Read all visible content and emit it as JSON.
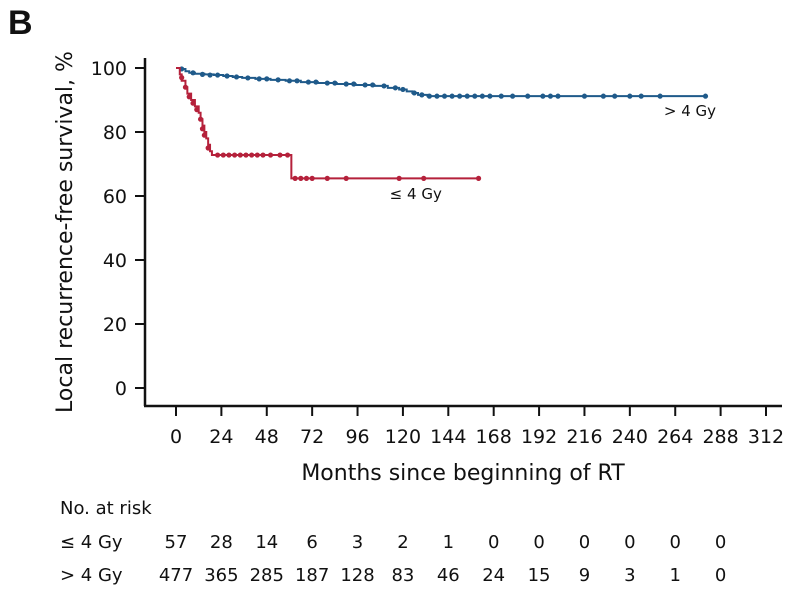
{
  "panel_label": "B",
  "chart_data": {
    "type": "line",
    "subtype": "kaplan-meier",
    "title": "",
    "xlabel": "Months since beginning of RT",
    "ylabel": "Local recurrence-free survival, %",
    "xlim": [
      0,
      312
    ],
    "ylim": [
      0,
      100
    ],
    "xticks": [
      0,
      24,
      48,
      72,
      96,
      120,
      144,
      168,
      192,
      216,
      240,
      264,
      288,
      312
    ],
    "yticks": [
      0,
      20,
      40,
      60,
      80,
      100
    ],
    "grid": false,
    "series": [
      {
        "name": "> 4 Gy",
        "color": "#1f5a8a",
        "label_at": [
          258,
          85
        ],
        "steps": [
          [
            0,
            100
          ],
          [
            3,
            99.7
          ],
          [
            5,
            99
          ],
          [
            7,
            98.5
          ],
          [
            10,
            98.2
          ],
          [
            15,
            98
          ],
          [
            20,
            97.8
          ],
          [
            25,
            97.5
          ],
          [
            30,
            97.2
          ],
          [
            35,
            96.9
          ],
          [
            42,
            96.6
          ],
          [
            50,
            96.3
          ],
          [
            58,
            96
          ],
          [
            66,
            95.6
          ],
          [
            75,
            95.3
          ],
          [
            85,
            95
          ],
          [
            95,
            94.7
          ],
          [
            105,
            94.4
          ],
          [
            112,
            93.8
          ],
          [
            118,
            93.3
          ],
          [
            122,
            92.7
          ],
          [
            125,
            92.2
          ],
          [
            128,
            91.6
          ],
          [
            133,
            91.2
          ],
          [
            280,
            91.2
          ]
        ],
        "censor_marks": [
          [
            3,
            99.7
          ],
          [
            9,
            98.5
          ],
          [
            14,
            98
          ],
          [
            18,
            97.8
          ],
          [
            22,
            97.8
          ],
          [
            27,
            97.5
          ],
          [
            32,
            97.2
          ],
          [
            38,
            96.9
          ],
          [
            44,
            96.6
          ],
          [
            48,
            96.6
          ],
          [
            54,
            96.3
          ],
          [
            60,
            96
          ],
          [
            64,
            96
          ],
          [
            70,
            95.6
          ],
          [
            74,
            95.6
          ],
          [
            80,
            95.3
          ],
          [
            84,
            95.3
          ],
          [
            90,
            95
          ],
          [
            94,
            95
          ],
          [
            100,
            94.7
          ],
          [
            104,
            94.7
          ],
          [
            110,
            94.4
          ],
          [
            116,
            93.8
          ],
          [
            120,
            93.3
          ],
          [
            126,
            92.2
          ],
          [
            130,
            91.6
          ],
          [
            134,
            91.2
          ],
          [
            138,
            91.2
          ],
          [
            142,
            91.2
          ],
          [
            146,
            91.2
          ],
          [
            150,
            91.2
          ],
          [
            154,
            91.2
          ],
          [
            158,
            91.2
          ],
          [
            162,
            91.2
          ],
          [
            166,
            91.2
          ],
          [
            172,
            91.2
          ],
          [
            178,
            91.2
          ],
          [
            186,
            91.2
          ],
          [
            194,
            91.2
          ],
          [
            198,
            91.2
          ],
          [
            202,
            91.2
          ],
          [
            216,
            91.2
          ],
          [
            226,
            91.2
          ],
          [
            232,
            91.2
          ],
          [
            240,
            91.2
          ],
          [
            246,
            91.2
          ],
          [
            256,
            91.2
          ],
          [
            280,
            91.2
          ]
        ]
      },
      {
        "name": "≤ 4 Gy",
        "color": "#b5213b",
        "label_at": [
          113,
          59
        ],
        "steps": [
          [
            0,
            100
          ],
          [
            2,
            98
          ],
          [
            3,
            96
          ],
          [
            5,
            94
          ],
          [
            6,
            92
          ],
          [
            8,
            90
          ],
          [
            10,
            88
          ],
          [
            12,
            86
          ],
          [
            13,
            84
          ],
          [
            14,
            82
          ],
          [
            15,
            80
          ],
          [
            16,
            78
          ],
          [
            17,
            76
          ],
          [
            18,
            74
          ],
          [
            19,
            72.8
          ],
          [
            60,
            72.8
          ],
          [
            61,
            65.5
          ],
          [
            160,
            65.5
          ]
        ],
        "censor_marks": [
          [
            3,
            97
          ],
          [
            5,
            94
          ],
          [
            7,
            91
          ],
          [
            9,
            89
          ],
          [
            11,
            87
          ],
          [
            13,
            84
          ],
          [
            14,
            81
          ],
          [
            15,
            79
          ],
          [
            17,
            75
          ],
          [
            22,
            72.8
          ],
          [
            25,
            72.8
          ],
          [
            28,
            72.8
          ],
          [
            31,
            72.8
          ],
          [
            34,
            72.8
          ],
          [
            37,
            72.8
          ],
          [
            40,
            72.8
          ],
          [
            43,
            72.8
          ],
          [
            46,
            72.8
          ],
          [
            50,
            72.8
          ],
          [
            55,
            72.8
          ],
          [
            59,
            72.8
          ],
          [
            63,
            65.5
          ],
          [
            66,
            65.5
          ],
          [
            69,
            65.5
          ],
          [
            72,
            65.5
          ],
          [
            80,
            65.5
          ],
          [
            90,
            65.5
          ],
          [
            118,
            65.5
          ],
          [
            131,
            65.5
          ],
          [
            160,
            65.5
          ]
        ]
      }
    ]
  },
  "risk_table": {
    "title": "No. at risk",
    "rows": [
      {
        "label": "≤ 4 Gy",
        "values": [
          "57",
          "28",
          "14",
          "6",
          "3",
          "2",
          "1",
          "0",
          "0",
          "0",
          "0",
          "0",
          "0"
        ]
      },
      {
        "label": "> 4 Gy",
        "values": [
          "477",
          "365",
          "285",
          "187",
          "128",
          "83",
          "46",
          "24",
          "15",
          "9",
          "3",
          "1",
          "0"
        ]
      }
    ]
  }
}
